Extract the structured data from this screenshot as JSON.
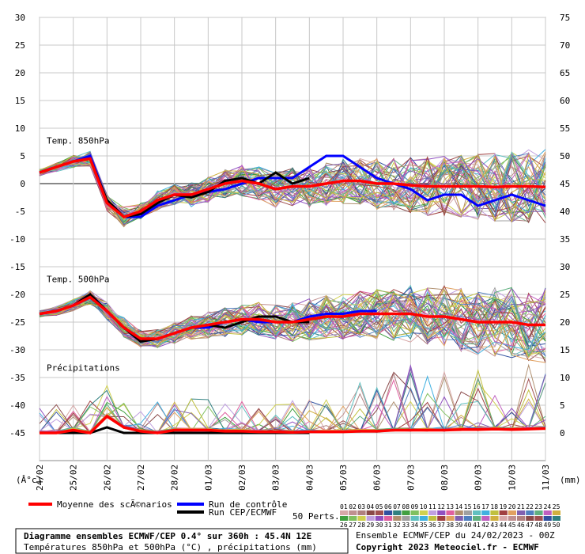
{
  "chart_data": {
    "type": "line",
    "left_axis": {
      "unit": "(Â°c)",
      "ticks": [
        30,
        25,
        20,
        15,
        10,
        5,
        0,
        -5,
        -10,
        -15,
        -20,
        -25,
        -30,
        -35,
        -40,
        -45
      ],
      "range": [
        -50,
        30
      ]
    },
    "right_axis": {
      "unit": "(mm)",
      "ticks": [
        75,
        70,
        65,
        60,
        55,
        50,
        45,
        40,
        35,
        30,
        25,
        20,
        15,
        10,
        5,
        0
      ],
      "range": [
        -5,
        75
      ]
    },
    "x_labels": [
      "24/02",
      "25/02",
      "26/02",
      "27/02",
      "28/02",
      "01/03",
      "02/03",
      "03/03",
      "04/03",
      "05/03",
      "06/03",
      "07/03",
      "08/03",
      "09/03",
      "10/03",
      "11/03"
    ],
    "grid": true,
    "panels": [
      {
        "label": "Temp. 850hPa",
        "axis": "left"
      },
      {
        "label": "Temp. 500hPa",
        "axis": "left"
      },
      {
        "label": "Précipitations",
        "axis": "right"
      }
    ],
    "series": [
      {
        "name": "Moyenne des scÃ©narios",
        "color": "#ff0000",
        "panel": "t850",
        "x": [
          0,
          0.5,
          1,
          1.5,
          2,
          2.5,
          3,
          3.5,
          4,
          4.5,
          5,
          5.5,
          6,
          6.5,
          7,
          7.5,
          8,
          8.5,
          9,
          9.5,
          10,
          10.5,
          11,
          11.5,
          12,
          12.5,
          13,
          13.5,
          14,
          14.5,
          15
        ],
        "y": [
          2,
          3,
          4,
          4.5,
          -3.5,
          -6,
          -5,
          -3,
          -2,
          -2,
          -1,
          0,
          0.5,
          0,
          -1,
          -0.5,
          -0.5,
          0,
          0.5,
          0.5,
          0,
          0,
          -0.3,
          -0.5,
          -0.5,
          -0.5,
          -0.5,
          -0.6,
          -0.5,
          -0.5,
          -0.6
        ]
      },
      {
        "name": "Run de contrôle",
        "color": "#0000ff",
        "panel": "t850",
        "x": [
          0,
          0.5,
          1,
          1.5,
          2,
          2.5,
          3,
          3.5,
          4,
          4.5,
          5,
          5.5,
          6,
          6.5,
          7,
          7.5,
          8,
          8.5,
          9,
          9.5,
          10,
          10.5,
          11,
          11.5,
          12,
          12.5,
          13,
          13.5,
          14,
          14.5,
          15
        ],
        "y": [
          2,
          3,
          4,
          5,
          -3,
          -6,
          -6,
          -4,
          -3,
          -2,
          -1.5,
          -1,
          0,
          1,
          1,
          1,
          3,
          5,
          5,
          3,
          1,
          0,
          -1,
          -3,
          -2,
          -2,
          -4,
          -3,
          -2,
          -3,
          -4
        ]
      },
      {
        "name": "Run CEP/ECMWF",
        "color": "#000000",
        "panel": "t850",
        "x": [
          0,
          0.5,
          1,
          1.5,
          2,
          2.5,
          3,
          3.5,
          4,
          4.5,
          5,
          5.5,
          6,
          6.5,
          7,
          7.5,
          8
        ],
        "y": [
          2,
          3,
          4,
          4.5,
          -3,
          -6,
          -5.5,
          -3.5,
          -2,
          -2.5,
          -1.5,
          0.5,
          1,
          0,
          2,
          0,
          1
        ]
      },
      {
        "name": "Moyenne des scÃ©narios",
        "color": "#ff0000",
        "panel": "t500",
        "x": [
          0,
          0.5,
          1,
          1.5,
          2,
          2.5,
          3,
          3.5,
          4,
          4.5,
          5,
          5.5,
          6,
          6.5,
          7,
          7.5,
          8,
          8.5,
          9,
          9.5,
          10,
          10.5,
          11,
          11.5,
          12,
          12.5,
          13,
          13.5,
          14,
          14.5,
          15
        ],
        "y": [
          -23.5,
          -23,
          -22,
          -20.5,
          -23,
          -26,
          -28,
          -28,
          -27,
          -26,
          -25.5,
          -25,
          -24.5,
          -24.5,
          -25,
          -25,
          -24.5,
          -24,
          -24,
          -23.5,
          -23.5,
          -23.5,
          -23.5,
          -24,
          -24,
          -24.5,
          -25,
          -25,
          -25,
          -25.5,
          -25.5
        ]
      },
      {
        "name": "Run de contrôle",
        "color": "#0000ff",
        "panel": "t500",
        "x": [
          0,
          0.5,
          1,
          1.5,
          2,
          2.5,
          3,
          3.5,
          4,
          4.5,
          5,
          5.5,
          6,
          6.5,
          7,
          7.5,
          8,
          8.5,
          9,
          9.5,
          10
        ],
        "y": [
          -23.5,
          -23,
          -22,
          -20,
          -23,
          -26,
          -28.5,
          -28,
          -27,
          -26,
          -26,
          -25,
          -24.5,
          -25,
          -25,
          -25,
          -24,
          -23.5,
          -23.5,
          -23,
          -23
        ]
      },
      {
        "name": "Run CEP/ECMWF",
        "color": "#000000",
        "panel": "t500",
        "x": [
          0,
          0.5,
          1,
          1.5,
          2,
          2.5,
          3,
          3.5,
          4,
          4.5,
          5,
          5.5,
          6,
          6.5,
          7,
          7.5,
          8
        ],
        "y": [
          -23.5,
          -23,
          -22,
          -20,
          -23,
          -26,
          -28.5,
          -28,
          -27,
          -26,
          -25.5,
          -26,
          -25,
          -24,
          -24,
          -25,
          -25
        ]
      },
      {
        "name": "Moyenne des scÃ©narios",
        "color": "#ff0000",
        "panel": "precip",
        "x": [
          0,
          0.5,
          1,
          1.5,
          2,
          2.5,
          3,
          3.5,
          4,
          4.5,
          5,
          5.5,
          6,
          6.5,
          7,
          7.5,
          8,
          8.5,
          9,
          9.5,
          10,
          10.5,
          11,
          11.5,
          12,
          12.5,
          13,
          13.5,
          14,
          14.5,
          15
        ],
        "y": [
          0,
          0,
          0.5,
          0,
          3,
          1,
          0.3,
          0,
          0.5,
          0.5,
          0.5,
          0.3,
          0.3,
          0.2,
          0.2,
          0.1,
          0.2,
          0.2,
          0.2,
          0.3,
          0.3,
          0.5,
          0.5,
          0.5,
          0.5,
          0.6,
          0.6,
          0.7,
          0.6,
          0.7,
          0.8
        ]
      },
      {
        "name": "Run CEP/ECMWF",
        "color": "#000000",
        "panel": "precip",
        "x": [
          0,
          0.5,
          1,
          1.5,
          2,
          2.5,
          3,
          3.5,
          4,
          4.5,
          5,
          5.5,
          6,
          6.5,
          7,
          7.5,
          8
        ],
        "y": [
          0,
          0,
          0,
          0,
          1,
          0,
          0,
          0,
          0,
          0,
          0,
          0,
          0,
          0,
          0,
          0,
          0
        ]
      }
    ]
  },
  "legend": {
    "mean_label": "Moyenne des scÃ©narios",
    "control_label": "Run de contrôle",
    "cep_label": "Run CEP/ECMWF",
    "perts_label": "50 Perts.",
    "perts_top": [
      "01",
      "02",
      "03",
      "04",
      "05",
      "06",
      "07",
      "08",
      "09",
      "10",
      "11",
      "12",
      "13",
      "14",
      "15",
      "16",
      "17",
      "18",
      "19",
      "20",
      "21",
      "22",
      "23",
      "24",
      "25"
    ],
    "perts_bottom": [
      "26",
      "27",
      "28",
      "29",
      "30",
      "31",
      "32",
      "33",
      "34",
      "35",
      "36",
      "37",
      "38",
      "39",
      "40",
      "41",
      "42",
      "43",
      "44",
      "45",
      "46",
      "47",
      "48",
      "49",
      "50"
    ],
    "pert_colors": [
      "#d7a8a8",
      "#c09090",
      "#b08080",
      "#8a4a4a",
      "#a05050",
      "#3050a0",
      "#308080",
      "#40a040",
      "#80c060",
      "#d0d050",
      "#c0a0e0",
      "#9050c0",
      "#e060a0",
      "#b09070",
      "#a0a0a0",
      "#60c0c0",
      "#40b0e0",
      "#c0c040",
      "#a04040",
      "#e0a060",
      "#8060b0",
      "#5080c0",
      "#60b080",
      "#c060c0",
      "#d0b040"
    ]
  },
  "footer": {
    "title": "Diagramme ensembles ECMWF/CEP 0.4° sur 360h : 45.4N 12E",
    "subtitle": "Températures 850hPa et 500hPa (°C) , précipitations (mm)",
    "run_info": "Ensemble ECMWF/CEP du 24/02/2023 - 00Z",
    "copyright": "Copyright 2023 Meteociel.fr - ECMWF"
  }
}
